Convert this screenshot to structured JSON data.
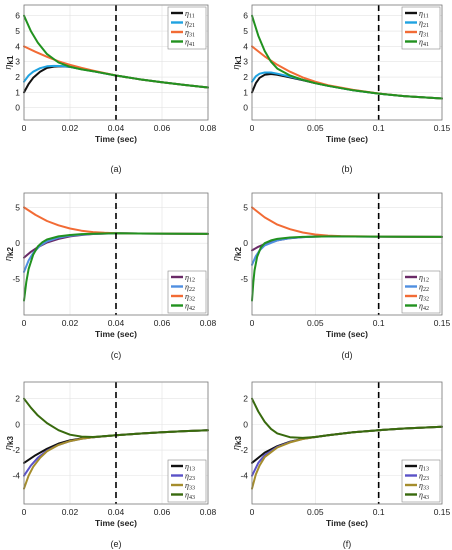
{
  "colors": {
    "black": "#111111",
    "blue": "#1fa2e0",
    "orange": "#f26b35",
    "green": "#21921f",
    "purple": "#6a2a67",
    "lightblue": "#4f8fe0",
    "gold": "#c8962a",
    "indigo": "#5a52c8",
    "olive": "#a58d2c",
    "darkgreen": "#386a0e"
  },
  "chart_data": [
    {
      "type": "line",
      "caption": "(a)",
      "xlabel": "Time (sec)",
      "ylabel_base": "η",
      "ylabel_sub": "k1",
      "xlim": [
        0,
        0.08
      ],
      "ylim": [
        -0.8,
        6.7
      ],
      "xticks": [
        "0",
        "0.02",
        "0.04",
        "0.06",
        "0.08"
      ],
      "yticks": [
        "0",
        "1",
        "2",
        "3",
        "4",
        "5",
        "6"
      ],
      "vline_x": 0.04,
      "legend": "top-right",
      "series": [
        {
          "name": "η11",
          "color_key": "black",
          "x": [
            0,
            0.002,
            0.004,
            0.007,
            0.01,
            0.013,
            0.016,
            0.02,
            0.025,
            0.03,
            0.04,
            0.05,
            0.06,
            0.07,
            0.08
          ],
          "y": [
            1.0,
            1.55,
            1.95,
            2.35,
            2.6,
            2.68,
            2.7,
            2.66,
            2.52,
            2.38,
            2.1,
            1.86,
            1.66,
            1.48,
            1.32
          ]
        },
        {
          "name": "η21",
          "color_key": "blue",
          "x": [
            0,
            0.002,
            0.004,
            0.007,
            0.01,
            0.013,
            0.016,
            0.02,
            0.025,
            0.03,
            0.04,
            0.05,
            0.06,
            0.07,
            0.08
          ],
          "y": [
            1.7,
            2.1,
            2.35,
            2.58,
            2.7,
            2.73,
            2.72,
            2.66,
            2.52,
            2.38,
            2.1,
            1.86,
            1.66,
            1.48,
            1.32
          ]
        },
        {
          "name": "η31",
          "color_key": "orange",
          "x": [
            0,
            0.005,
            0.01,
            0.015,
            0.02,
            0.025,
            0.03,
            0.04,
            0.05,
            0.06,
            0.07,
            0.08
          ],
          "y": [
            4.0,
            3.65,
            3.32,
            3.03,
            2.8,
            2.6,
            2.42,
            2.1,
            1.86,
            1.66,
            1.48,
            1.32
          ]
        },
        {
          "name": "η41",
          "color_key": "green",
          "x": [
            0,
            0.003,
            0.006,
            0.01,
            0.015,
            0.02,
            0.025,
            0.03,
            0.04,
            0.05,
            0.06,
            0.07,
            0.08
          ],
          "y": [
            6.0,
            5.0,
            4.25,
            3.5,
            2.95,
            2.67,
            2.5,
            2.38,
            2.1,
            1.86,
            1.66,
            1.48,
            1.32
          ]
        }
      ]
    },
    {
      "type": "line",
      "caption": "(b)",
      "xlabel": "Time (sec)",
      "ylabel_base": "η",
      "ylabel_sub": "k1",
      "xlim": [
        0,
        0.15
      ],
      "ylim": [
        -0.8,
        6.7
      ],
      "xticks": [
        "0",
        "0.05",
        "0.1",
        "0.15"
      ],
      "yticks": [
        "0",
        "1",
        "2",
        "3",
        "4",
        "5",
        "6"
      ],
      "vline_x": 0.1,
      "legend": "top-right",
      "series": [
        {
          "name": "η11",
          "color_key": "black",
          "x": [
            0,
            0.003,
            0.006,
            0.01,
            0.015,
            0.02,
            0.03,
            0.04,
            0.05,
            0.06,
            0.08,
            0.1,
            0.12,
            0.15
          ],
          "y": [
            1.0,
            1.6,
            1.95,
            2.15,
            2.2,
            2.15,
            1.98,
            1.8,
            1.6,
            1.43,
            1.14,
            0.92,
            0.76,
            0.6
          ]
        },
        {
          "name": "η21",
          "color_key": "blue",
          "x": [
            0,
            0.003,
            0.006,
            0.01,
            0.015,
            0.02,
            0.03,
            0.04,
            0.05,
            0.06,
            0.08,
            0.1,
            0.12,
            0.15
          ],
          "y": [
            1.7,
            2.05,
            2.22,
            2.3,
            2.3,
            2.22,
            2.03,
            1.82,
            1.62,
            1.44,
            1.14,
            0.92,
            0.76,
            0.6
          ]
        },
        {
          "name": "η31",
          "color_key": "orange",
          "x": [
            0,
            0.01,
            0.02,
            0.03,
            0.04,
            0.05,
            0.06,
            0.08,
            0.1,
            0.12,
            0.15
          ],
          "y": [
            4.0,
            3.35,
            2.8,
            2.35,
            1.98,
            1.7,
            1.47,
            1.16,
            0.93,
            0.76,
            0.6
          ]
        },
        {
          "name": "η41",
          "color_key": "green",
          "x": [
            0,
            0.005,
            0.01,
            0.015,
            0.02,
            0.03,
            0.04,
            0.05,
            0.06,
            0.08,
            0.1,
            0.12,
            0.15
          ],
          "y": [
            6.0,
            4.7,
            3.7,
            3.0,
            2.55,
            2.1,
            1.82,
            1.6,
            1.43,
            1.14,
            0.92,
            0.76,
            0.6
          ]
        }
      ]
    },
    {
      "type": "line",
      "caption": "(c)",
      "xlabel": "Time (sec)",
      "ylabel_base": "η",
      "ylabel_sub": "k2",
      "xlim": [
        0,
        0.08
      ],
      "ylim": [
        -10,
        7
      ],
      "xticks": [
        "0",
        "0.02",
        "0.04",
        "0.06",
        "0.08"
      ],
      "yticks": [
        "-5",
        "0",
        "5"
      ],
      "vline_x": 0.04,
      "legend": "bottom-right",
      "series": [
        {
          "name": "η12",
          "color_key": "purple",
          "x": [
            0,
            0.003,
            0.006,
            0.01,
            0.015,
            0.02,
            0.025,
            0.03,
            0.04,
            0.05,
            0.06,
            0.07,
            0.08
          ],
          "y": [
            -2.0,
            -1.2,
            -0.55,
            0.1,
            0.6,
            0.95,
            1.15,
            1.28,
            1.38,
            1.36,
            1.34,
            1.32,
            1.3
          ]
        },
        {
          "name": "η22",
          "color_key": "lightblue",
          "x": [
            0,
            0.002,
            0.004,
            0.007,
            0.01,
            0.015,
            0.02,
            0.025,
            0.03,
            0.04,
            0.05,
            0.06,
            0.07,
            0.08
          ],
          "y": [
            -4.0,
            -2.4,
            -1.35,
            -0.35,
            0.25,
            0.78,
            1.05,
            1.2,
            1.3,
            1.38,
            1.36,
            1.34,
            1.32,
            1.3
          ]
        },
        {
          "name": "η32",
          "color_key": "orange",
          "x": [
            0,
            0.005,
            0.01,
            0.015,
            0.02,
            0.025,
            0.03,
            0.035,
            0.04,
            0.05,
            0.06,
            0.07,
            0.08
          ],
          "y": [
            5.0,
            3.95,
            3.1,
            2.5,
            2.05,
            1.75,
            1.55,
            1.45,
            1.4,
            1.36,
            1.34,
            1.32,
            1.3
          ]
        },
        {
          "name": "η42",
          "color_key": "green",
          "x": [
            0,
            0.001,
            0.002,
            0.004,
            0.006,
            0.008,
            0.01,
            0.015,
            0.02,
            0.025,
            0.03,
            0.04,
            0.05,
            0.06,
            0.07,
            0.08
          ],
          "y": [
            -8.0,
            -5.4,
            -3.6,
            -1.6,
            -0.45,
            0.15,
            0.52,
            0.95,
            1.15,
            1.27,
            1.33,
            1.38,
            1.36,
            1.34,
            1.32,
            1.3
          ]
        }
      ]
    },
    {
      "type": "line",
      "caption": "(d)",
      "xlabel": "Time (sec)",
      "ylabel_base": "η",
      "ylabel_sub": "k2",
      "xlim": [
        0,
        0.15
      ],
      "ylim": [
        -10,
        7
      ],
      "xticks": [
        "0",
        "0.05",
        "0.1",
        "0.15"
      ],
      "yticks": [
        "-5",
        "0",
        "5"
      ],
      "vline_x": 0.1,
      "legend": "bottom-right",
      "series": [
        {
          "name": "η12",
          "color_key": "purple",
          "x": [
            0,
            0.005,
            0.01,
            0.02,
            0.03,
            0.04,
            0.05,
            0.06,
            0.08,
            0.1,
            0.12,
            0.15
          ],
          "y": [
            -1.0,
            -0.5,
            -0.1,
            0.4,
            0.7,
            0.85,
            0.93,
            0.95,
            0.94,
            0.92,
            0.9,
            0.88
          ]
        },
        {
          "name": "η22",
          "color_key": "lightblue",
          "x": [
            0,
            0.003,
            0.006,
            0.01,
            0.02,
            0.03,
            0.04,
            0.05,
            0.06,
            0.08,
            0.1,
            0.12,
            0.15
          ],
          "y": [
            -3.0,
            -1.8,
            -1.0,
            -0.3,
            0.4,
            0.72,
            0.86,
            0.93,
            0.95,
            0.94,
            0.92,
            0.9,
            0.88
          ]
        },
        {
          "name": "η32",
          "color_key": "orange",
          "x": [
            0,
            0.01,
            0.02,
            0.03,
            0.04,
            0.05,
            0.06,
            0.07,
            0.08,
            0.1,
            0.12,
            0.15
          ],
          "y": [
            5.0,
            3.6,
            2.6,
            1.95,
            1.5,
            1.22,
            1.07,
            1.0,
            0.96,
            0.92,
            0.9,
            0.88
          ]
        },
        {
          "name": "η42",
          "color_key": "green",
          "x": [
            0,
            0.001,
            0.002,
            0.004,
            0.007,
            0.01,
            0.015,
            0.02,
            0.03,
            0.04,
            0.05,
            0.06,
            0.08,
            0.1,
            0.12,
            0.15
          ],
          "y": [
            -8.0,
            -5.5,
            -3.8,
            -1.9,
            -0.6,
            0.0,
            0.4,
            0.6,
            0.8,
            0.88,
            0.93,
            0.95,
            0.94,
            0.92,
            0.9,
            0.88
          ]
        }
      ]
    },
    {
      "type": "line",
      "caption": "(e)",
      "xlabel": "Time (sec)",
      "ylabel_base": "η",
      "ylabel_sub": "k3",
      "xlim": [
        0,
        0.08
      ],
      "ylim": [
        -6.2,
        3.3
      ],
      "xticks": [
        "0",
        "0.02",
        "0.04",
        "0.06",
        "0.08"
      ],
      "yticks": [
        "-4",
        "-2",
        "0",
        "2"
      ],
      "vline_x": 0.04,
      "legend": "bottom-right",
      "series": [
        {
          "name": "η13",
          "color_key": "black",
          "x": [
            0,
            0.005,
            0.01,
            0.015,
            0.02,
            0.025,
            0.03,
            0.04,
            0.05,
            0.06,
            0.07,
            0.08
          ],
          "y": [
            -3.0,
            -2.4,
            -1.9,
            -1.5,
            -1.25,
            -1.1,
            -1.0,
            -0.85,
            -0.72,
            -0.62,
            -0.52,
            -0.45
          ]
        },
        {
          "name": "η23",
          "color_key": "indigo",
          "x": [
            0,
            0.003,
            0.006,
            0.01,
            0.015,
            0.02,
            0.025,
            0.03,
            0.04,
            0.05,
            0.06,
            0.07,
            0.08
          ],
          "y": [
            -4.0,
            -3.2,
            -2.6,
            -2.05,
            -1.6,
            -1.3,
            -1.12,
            -1.0,
            -0.85,
            -0.72,
            -0.62,
            -0.52,
            -0.45
          ]
        },
        {
          "name": "η33",
          "color_key": "olive",
          "x": [
            0,
            0.002,
            0.004,
            0.007,
            0.01,
            0.015,
            0.02,
            0.025,
            0.03,
            0.04,
            0.05,
            0.06,
            0.07,
            0.08
          ],
          "y": [
            -5.0,
            -4.0,
            -3.3,
            -2.6,
            -2.1,
            -1.6,
            -1.3,
            -1.12,
            -1.0,
            -0.85,
            -0.72,
            -0.62,
            -0.52,
            -0.45
          ]
        },
        {
          "name": "η43",
          "color_key": "darkgreen",
          "x": [
            0,
            0.003,
            0.006,
            0.01,
            0.015,
            0.02,
            0.025,
            0.03,
            0.04,
            0.05,
            0.06,
            0.07,
            0.08
          ],
          "y": [
            2.0,
            1.3,
            0.7,
            0.1,
            -0.45,
            -0.8,
            -0.95,
            -0.98,
            -0.85,
            -0.72,
            -0.62,
            -0.52,
            -0.45
          ]
        }
      ]
    },
    {
      "type": "line",
      "caption": "(f)",
      "xlabel": "Time (sec)",
      "ylabel_base": "η",
      "ylabel_sub": "k3",
      "xlim": [
        0,
        0.15
      ],
      "ylim": [
        -6.2,
        3.3
      ],
      "xticks": [
        "0",
        "0.05",
        "0.1",
        "0.15"
      ],
      "yticks": [
        "-4",
        "-2",
        "0",
        "2"
      ],
      "vline_x": 0.1,
      "legend": "bottom-right",
      "series": [
        {
          "name": "η13",
          "color_key": "black",
          "x": [
            0,
            0.01,
            0.02,
            0.03,
            0.04,
            0.05,
            0.06,
            0.08,
            0.1,
            0.12,
            0.15
          ],
          "y": [
            -3.0,
            -2.2,
            -1.7,
            -1.35,
            -1.12,
            -0.98,
            -0.85,
            -0.62,
            -0.45,
            -0.32,
            -0.18
          ]
        },
        {
          "name": "η23",
          "color_key": "indigo",
          "x": [
            0,
            0.005,
            0.01,
            0.02,
            0.03,
            0.04,
            0.05,
            0.06,
            0.08,
            0.1,
            0.12,
            0.15
          ],
          "y": [
            -4.0,
            -3.0,
            -2.4,
            -1.75,
            -1.38,
            -1.13,
            -0.98,
            -0.85,
            -0.62,
            -0.45,
            -0.32,
            -0.18
          ]
        },
        {
          "name": "η33",
          "color_key": "olive",
          "x": [
            0,
            0.003,
            0.006,
            0.01,
            0.02,
            0.03,
            0.04,
            0.05,
            0.06,
            0.08,
            0.1,
            0.12,
            0.15
          ],
          "y": [
            -5.0,
            -3.9,
            -3.2,
            -2.55,
            -1.8,
            -1.4,
            -1.14,
            -0.98,
            -0.85,
            -0.62,
            -0.45,
            -0.32,
            -0.18
          ]
        },
        {
          "name": "η43",
          "color_key": "darkgreen",
          "x": [
            0,
            0.005,
            0.01,
            0.015,
            0.02,
            0.03,
            0.04,
            0.05,
            0.06,
            0.08,
            0.1,
            0.12,
            0.15
          ],
          "y": [
            2.0,
            1.0,
            0.2,
            -0.35,
            -0.7,
            -1.0,
            -1.05,
            -0.98,
            -0.85,
            -0.62,
            -0.45,
            -0.32,
            -0.18
          ]
        }
      ]
    }
  ]
}
